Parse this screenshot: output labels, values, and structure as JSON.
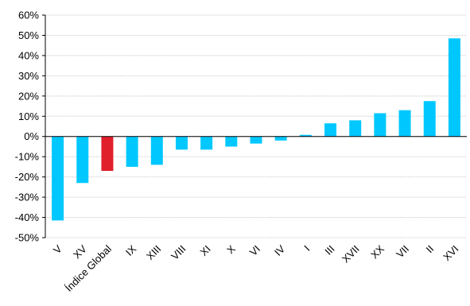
{
  "chart_data": {
    "type": "bar",
    "categories": [
      "V",
      "XV",
      "Índice Global",
      "IX",
      "XIII",
      "VIII",
      "XI",
      "X",
      "VI",
      "IV",
      "I",
      "III",
      "XVII",
      "XX",
      "VII",
      "II",
      "XVI"
    ],
    "values": [
      -41.5,
      -23,
      -17,
      -15,
      -14,
      -6.5,
      -6.5,
      -5,
      -3.5,
      -2,
      0.8,
      6.5,
      8,
      11.5,
      13,
      17.5,
      48.5
    ],
    "y_ticks": [
      "60%",
      "50%",
      "40%",
      "30%",
      "20%",
      "10%",
      "0%",
      "-10%",
      "-20%",
      "-30%",
      "-40%",
      "-50%"
    ],
    "y_tick_values": [
      60,
      50,
      40,
      30,
      20,
      10,
      0,
      -10,
      -20,
      -30,
      -40,
      -50
    ],
    "ylim": [
      -50,
      60
    ],
    "y_unit": "%",
    "grid": true,
    "title": "",
    "xlabel": "",
    "ylabel": "",
    "colors": {
      "bar": "#00c8ff",
      "highlight": "#e0202a",
      "grid": "#c8c8c8",
      "axis": "#000000"
    },
    "highlight_category": "Índice Global"
  }
}
